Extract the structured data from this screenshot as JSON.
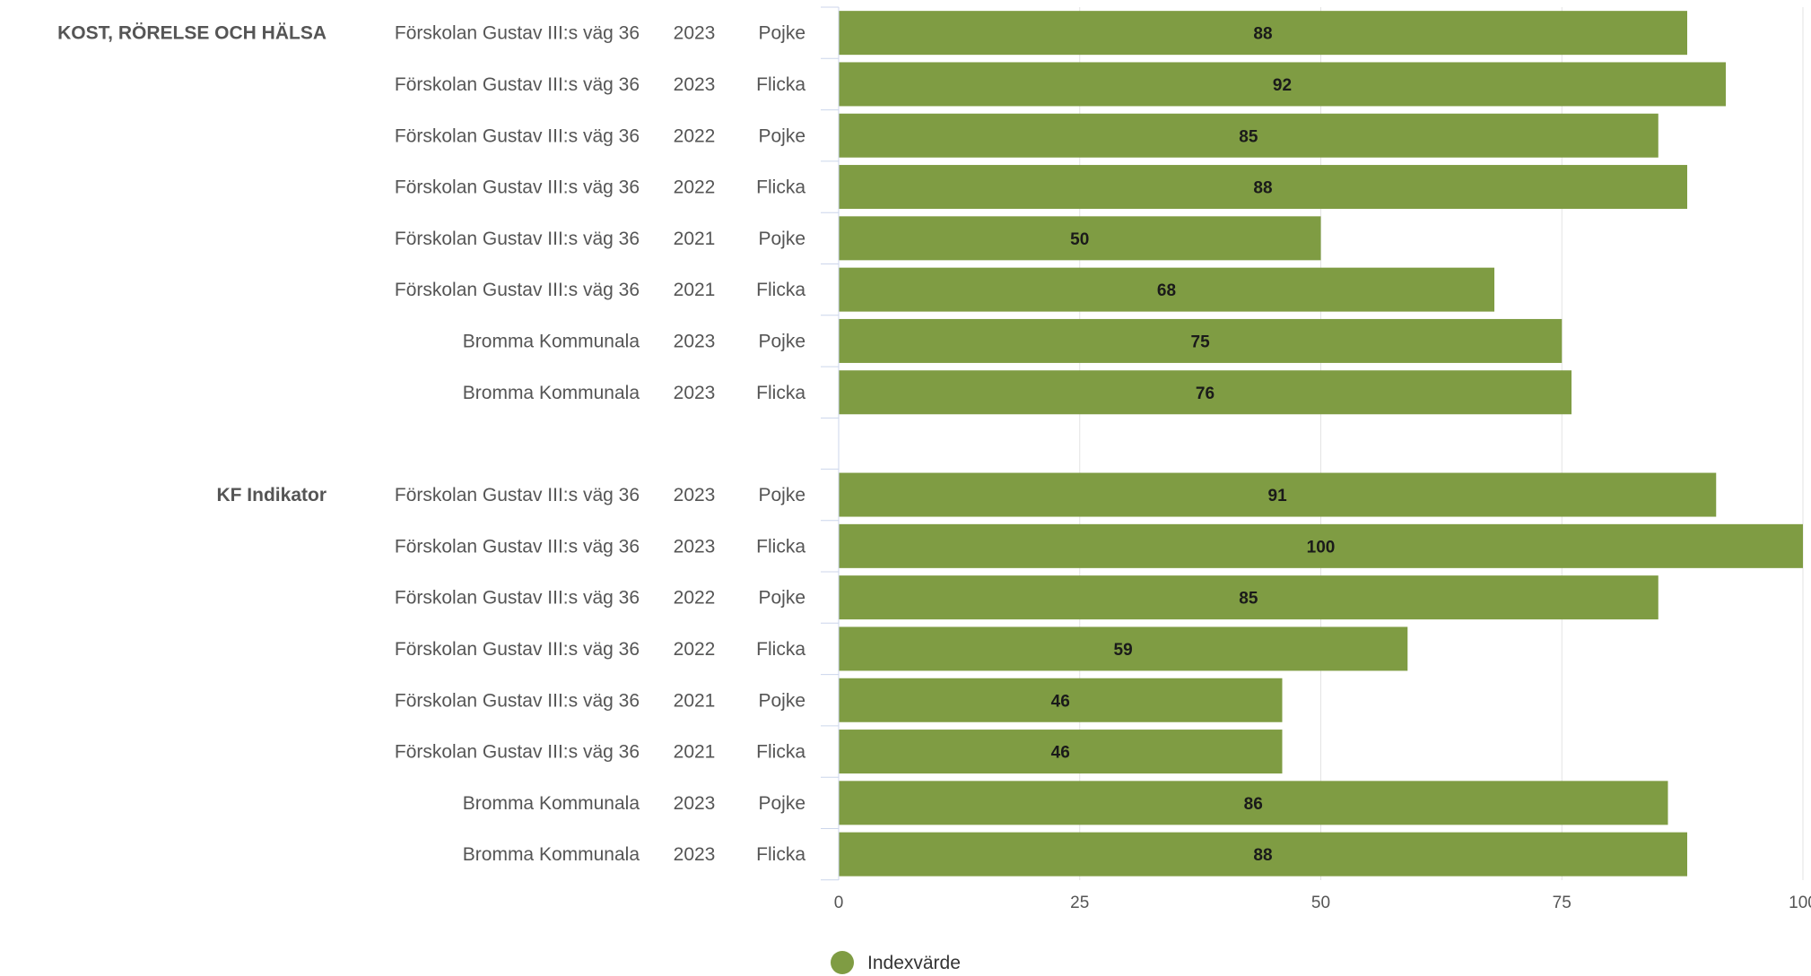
{
  "chart_data": {
    "type": "bar",
    "orientation": "horizontal",
    "title": "",
    "xlabel": "",
    "ylabel": "",
    "xlim": [
      0,
      100
    ],
    "ticks": [
      "0",
      "25",
      "50",
      "75",
      "100"
    ],
    "grid": true,
    "legend_position": "bottom",
    "bar_color": "#7f9c43",
    "groups": [
      {
        "label": "KOST, RÖRELSE OCH HÄLSA",
        "rows": [
          {
            "unit": "Förskolan Gustav III:s väg 36",
            "year": "2023",
            "gender": "Pojke",
            "value": 88
          },
          {
            "unit": "Förskolan Gustav III:s väg 36",
            "year": "2023",
            "gender": "Flicka",
            "value": 92
          },
          {
            "unit": "Förskolan Gustav III:s väg 36",
            "year": "2022",
            "gender": "Pojke",
            "value": 85
          },
          {
            "unit": "Förskolan Gustav III:s väg 36",
            "year": "2022",
            "gender": "Flicka",
            "value": 88
          },
          {
            "unit": "Förskolan Gustav III:s väg 36",
            "year": "2021",
            "gender": "Pojke",
            "value": 50
          },
          {
            "unit": "Förskolan Gustav III:s väg 36",
            "year": "2021",
            "gender": "Flicka",
            "value": 68
          },
          {
            "unit": "Bromma Kommunala",
            "year": "2023",
            "gender": "Pojke",
            "value": 75
          },
          {
            "unit": "Bromma Kommunala",
            "year": "2023",
            "gender": "Flicka",
            "value": 76
          }
        ]
      },
      {
        "label": "KF Indikator",
        "rows": [
          {
            "unit": "Förskolan Gustav III:s väg 36",
            "year": "2023",
            "gender": "Pojke",
            "value": 91
          },
          {
            "unit": "Förskolan Gustav III:s väg 36",
            "year": "2023",
            "gender": "Flicka",
            "value": 100
          },
          {
            "unit": "Förskolan Gustav III:s väg 36",
            "year": "2022",
            "gender": "Pojke",
            "value": 85
          },
          {
            "unit": "Förskolan Gustav III:s väg 36",
            "year": "2022",
            "gender": "Flicka",
            "value": 59
          },
          {
            "unit": "Förskolan Gustav III:s väg 36",
            "year": "2021",
            "gender": "Pojke",
            "value": 46
          },
          {
            "unit": "Förskolan Gustav III:s väg 36",
            "year": "2021",
            "gender": "Flicka",
            "value": 46
          },
          {
            "unit": "Bromma Kommunala",
            "year": "2023",
            "gender": "Pojke",
            "value": 86
          },
          {
            "unit": "Bromma Kommunala",
            "year": "2023",
            "gender": "Flicka",
            "value": 88
          }
        ]
      }
    ],
    "series": [
      {
        "name": "Indexvärde",
        "color": "#7f9c43"
      }
    ]
  }
}
